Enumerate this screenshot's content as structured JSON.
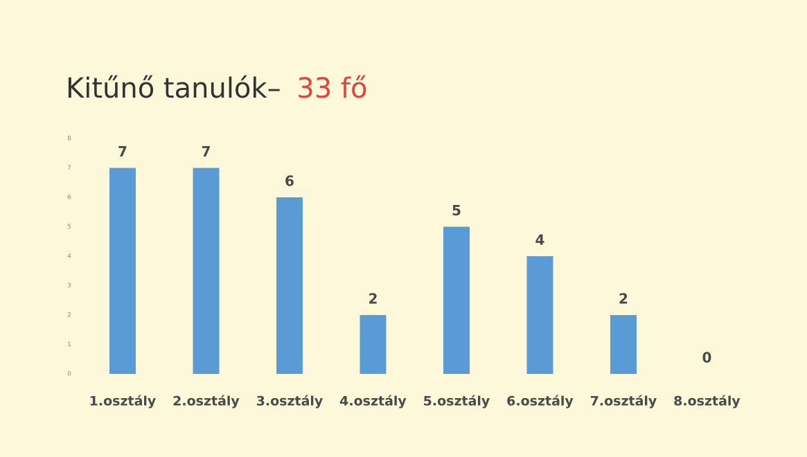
{
  "chart_data": {
    "type": "bar",
    "title": "Kitűnő tanulók–",
    "title_highlight": "33 fő",
    "title_color": "#333333",
    "title_highlight_color": "#e8413c",
    "categories": [
      "1.osztály",
      "2.osztály",
      "3.osztály",
      "4.osztály",
      "5.osztály",
      "6.osztály",
      "7.osztály",
      "8.osztály"
    ],
    "values": [
      7,
      7,
      6,
      2,
      5,
      4,
      2,
      0
    ],
    "color": "#5b9bd5",
    "ylim": [
      0,
      8
    ],
    "yticks": [
      0,
      1,
      2,
      3,
      4,
      5,
      6,
      7,
      8
    ],
    "grid": false
  }
}
